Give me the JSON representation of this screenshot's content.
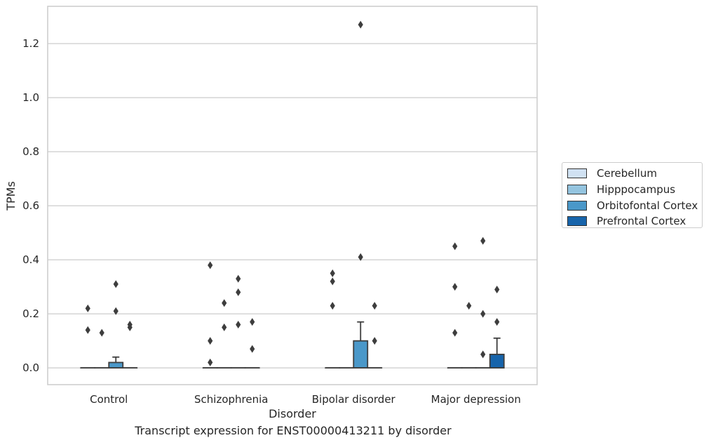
{
  "chart_data": {
    "type": "box",
    "title": "Transcript expression for ENST00000413211 by disorder",
    "xlabel": "Disorder",
    "ylabel": "TPMs",
    "ylim": [
      -0.062,
      1.338
    ],
    "yticks": [
      "0.0",
      "0.2",
      "0.4",
      "0.6",
      "0.8",
      "1.0",
      "1.2"
    ],
    "ytick_values": [
      0.0,
      0.2,
      0.4,
      0.6,
      0.8,
      1.0,
      1.2
    ],
    "grid": true,
    "legend_position": "right",
    "categories": [
      "Control",
      "Schizophrenia",
      "Bipolar disorder",
      "Major depression"
    ],
    "series": [
      {
        "name": "Cerebellum",
        "color": "#d0e1f2",
        "boxes": [
          {
            "q1": 0,
            "median": 0,
            "q3": 0,
            "whisker_low": 0,
            "whisker_high": 0,
            "outliers": [
              0.22,
              0.14
            ]
          },
          {
            "q1": 0,
            "median": 0,
            "q3": 0,
            "whisker_low": 0,
            "whisker_high": 0,
            "outliers": [
              0.38,
              0.1,
              0.02
            ]
          },
          {
            "q1": 0,
            "median": 0,
            "q3": 0,
            "whisker_low": 0,
            "whisker_high": 0,
            "outliers": [
              0.35,
              0.32,
              0.23
            ]
          },
          {
            "q1": 0,
            "median": 0,
            "q3": 0,
            "whisker_low": 0,
            "whisker_high": 0,
            "outliers": [
              0.45,
              0.3,
              0.13
            ]
          }
        ]
      },
      {
        "name": "Hipppocampus",
        "color": "#94c4df",
        "boxes": [
          {
            "q1": 0,
            "median": 0,
            "q3": 0,
            "whisker_low": 0,
            "whisker_high": 0,
            "outliers": [
              0.13
            ]
          },
          {
            "q1": 0,
            "median": 0,
            "q3": 0,
            "whisker_low": 0,
            "whisker_high": 0,
            "outliers": [
              0.24,
              0.15
            ]
          },
          {
            "q1": 0,
            "median": 0,
            "q3": 0,
            "whisker_low": 0,
            "whisker_high": 0,
            "outliers": []
          },
          {
            "q1": 0,
            "median": 0,
            "q3": 0,
            "whisker_low": 0,
            "whisker_high": 0,
            "outliers": [
              0.23
            ]
          }
        ]
      },
      {
        "name": "Orbitofontal Cortex",
        "color": "#4a98c9",
        "boxes": [
          {
            "q1": 0,
            "median": 0,
            "q3": 0.02,
            "whisker_low": 0,
            "whisker_high": 0.04,
            "outliers": [
              0.31,
              0.21
            ]
          },
          {
            "q1": 0,
            "median": 0,
            "q3": 0,
            "whisker_low": 0,
            "whisker_high": 0,
            "outliers": [
              0.33,
              0.28,
              0.16
            ]
          },
          {
            "q1": 0,
            "median": 0,
            "q3": 0.1,
            "whisker_low": 0,
            "whisker_high": 0.17,
            "outliers": [
              1.27,
              0.41
            ]
          },
          {
            "q1": 0,
            "median": 0,
            "q3": 0,
            "whisker_low": 0,
            "whisker_high": 0,
            "outliers": [
              0.47,
              0.2,
              0.05
            ]
          }
        ]
      },
      {
        "name": "Prefrontal Cortex",
        "color": "#1764ab",
        "boxes": [
          {
            "q1": 0,
            "median": 0,
            "q3": 0,
            "whisker_low": 0,
            "whisker_high": 0,
            "outliers": [
              0.16,
              0.15
            ]
          },
          {
            "q1": 0,
            "median": 0,
            "q3": 0,
            "whisker_low": 0,
            "whisker_high": 0,
            "outliers": [
              0.17,
              0.07
            ]
          },
          {
            "q1": 0,
            "median": 0,
            "q3": 0,
            "whisker_low": 0,
            "whisker_high": 0,
            "outliers": [
              0.23,
              0.1
            ]
          },
          {
            "q1": 0,
            "median": 0,
            "q3": 0.05,
            "whisker_low": 0,
            "whisker_high": 0.11,
            "outliers": [
              0.29,
              0.17
            ]
          }
        ]
      }
    ]
  }
}
